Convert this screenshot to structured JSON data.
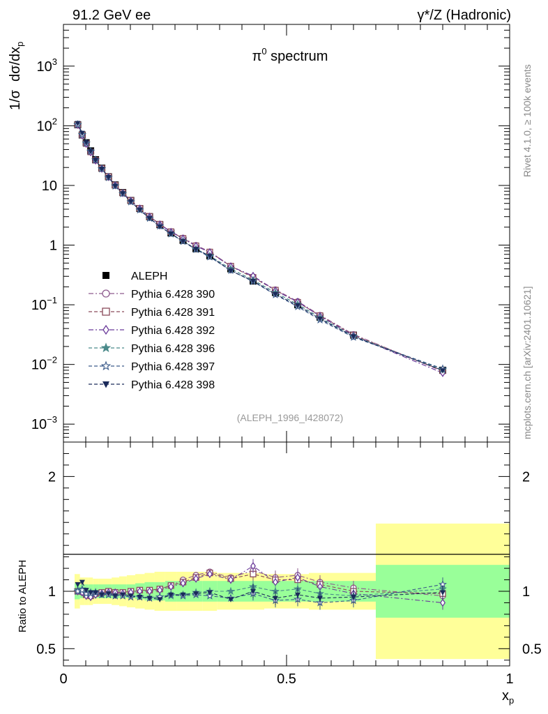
{
  "header": {
    "left": "91.2 GeV ee",
    "right_prefix": "γ*/Z",
    "right_suffix": "(Hadronic)"
  },
  "side_text": {
    "rivet": "Rivet 4.1.0, ≥ 100k events",
    "mcplots": "mcplots.cern.ch [arXiv:2401.10621]"
  },
  "colors": {
    "data": "#000000",
    "p390": "#8e5a8e",
    "p391": "#8a4a5a",
    "p392": "#6a3a9a",
    "p396": "#4a8a8a",
    "p397": "#3a5a8a",
    "p398": "#1a2a5a",
    "band_inner": "#99ff99",
    "band_outer": "#ffff99"
  },
  "chart_data": [
    {
      "type": "line",
      "title": "π0 spectrum",
      "title_base": "π",
      "title_sup": "0",
      "title_rest": " spectrum",
      "analysis_id": "(ALEPH_1996_I428072)",
      "ylabel": "1/σ  dσ/dxp",
      "ylabel_parts": {
        "a": "1/σ",
        "b": "dσ/dx",
        "sub": "p"
      },
      "yscale": "log",
      "ylim": [
        0.0005,
        5000
      ],
      "xlim": [
        0,
        1
      ],
      "y_ticks": [
        {
          "value": 0.001,
          "base": "10",
          "exp": "−3"
        },
        {
          "value": 0.01,
          "base": "10",
          "exp": "−2"
        },
        {
          "value": 0.1,
          "base": "10",
          "exp": "−1"
        },
        {
          "value": 1,
          "base": "1",
          "exp": ""
        },
        {
          "value": 10,
          "base": "10",
          "exp": ""
        },
        {
          "value": 100,
          "base": "10",
          "exp": "2"
        },
        {
          "value": 1000,
          "base": "10",
          "exp": "3"
        }
      ],
      "x": [
        0.032,
        0.042,
        0.051,
        0.061,
        0.072,
        0.086,
        0.101,
        0.116,
        0.133,
        0.151,
        0.171,
        0.193,
        0.216,
        0.241,
        0.268,
        0.297,
        0.328,
        0.375,
        0.425,
        0.475,
        0.525,
        0.575,
        0.65,
        0.85
      ],
      "data_values": [
        104.0,
        70.0,
        52.0,
        38.0,
        27.0,
        19.5,
        14.0,
        10.2,
        7.6,
        5.6,
        4.1,
        3.0,
        2.2,
        1.6,
        1.2,
        0.87,
        0.66,
        0.4,
        0.25,
        0.16,
        0.1,
        0.062,
        0.031,
        0.008
      ],
      "legend_position": "middle-left",
      "series": [
        {
          "name": "ALEPH",
          "marker": "square-filled",
          "line": "none",
          "color_key": "data"
        },
        {
          "name": "Pythia 6.428 390",
          "marker": "circle-open",
          "line": "dashdot",
          "color_key": "p390",
          "ratios": [
            1.0,
            0.99,
            0.97,
            0.96,
            0.98,
            0.99,
            1.0,
            0.99,
            0.99,
            1.0,
            1.01,
            1.01,
            1.02,
            1.05,
            1.1,
            1.14,
            1.17,
            1.12,
            1.18,
            1.12,
            1.14,
            1.08,
            1.03,
            0.96
          ]
        },
        {
          "name": "Pythia 6.428 391",
          "marker": "square-open",
          "line": "dashed",
          "color_key": "p391",
          "ratios": [
            1.0,
            1.0,
            0.97,
            0.96,
            0.98,
            0.99,
            1.0,
            0.99,
            0.99,
            1.0,
            1.01,
            1.01,
            1.02,
            1.05,
            1.08,
            1.12,
            1.16,
            1.11,
            1.15,
            1.1,
            1.1,
            1.06,
            1.0,
            0.98
          ]
        },
        {
          "name": "Pythia 6.428 392",
          "marker": "diamond-open",
          "line": "dashdot",
          "color_key": "p392",
          "ratios": [
            1.0,
            0.99,
            0.96,
            0.95,
            0.97,
            0.98,
            0.99,
            0.99,
            0.98,
            0.99,
            1.0,
            1.0,
            1.01,
            1.04,
            1.07,
            1.11,
            1.15,
            1.1,
            1.22,
            1.08,
            1.12,
            1.04,
            0.98,
            0.9
          ]
        },
        {
          "name": "Pythia 6.428 396",
          "marker": "star-filled",
          "line": "dashed",
          "color_key": "p396",
          "ratios": [
            1.01,
            1.02,
            0.99,
            0.99,
            0.99,
            0.97,
            0.97,
            0.96,
            0.96,
            0.95,
            0.95,
            0.94,
            0.95,
            0.96,
            0.97,
            0.99,
            1.0,
            1.0,
            1.04,
            1.0,
            1.02,
            0.98,
            0.96,
            1.02
          ]
        },
        {
          "name": "Pythia 6.428 397",
          "marker": "star-open",
          "line": "dashed",
          "color_key": "p397",
          "ratios": [
            1.0,
            1.01,
            0.98,
            0.98,
            0.99,
            0.97,
            0.97,
            0.96,
            0.96,
            0.95,
            0.95,
            0.94,
            0.95,
            0.97,
            0.96,
            0.97,
            0.96,
            0.94,
            0.98,
            0.92,
            0.93,
            0.9,
            0.92,
            1.06
          ]
        },
        {
          "name": "Pythia 6.428 398",
          "marker": "triangle-down-filled",
          "line": "dashed",
          "color_key": "p398",
          "ratios": [
            1.06,
            1.08,
            1.01,
            0.99,
            0.99,
            0.97,
            0.98,
            0.96,
            0.97,
            0.96,
            0.95,
            0.94,
            0.93,
            0.97,
            0.97,
            0.98,
            0.99,
            0.93,
            1.0,
            0.94,
            0.97,
            0.94,
            0.95,
            0.99
          ]
        }
      ]
    },
    {
      "type": "line",
      "ylabel": "Ratio to ALEPH",
      "xlabel": "xp",
      "xlabel_parts": {
        "base": "x",
        "sub": "p"
      },
      "xlim": [
        0,
        1
      ],
      "ylim": [
        0.35,
        2.3
      ],
      "reference_line": 1,
      "y_ticks": [
        {
          "value": 0.5,
          "label": "0.5"
        },
        {
          "value": 1,
          "label": "1"
        },
        {
          "value": 2,
          "label": "2"
        }
      ],
      "x_ticks": [
        {
          "value": 0,
          "label": "0"
        },
        {
          "value": 0.5,
          "label": "0.5"
        },
        {
          "value": 1,
          "label": "1"
        }
      ],
      "uncertainty_bands": {
        "bin_edges": [
          0.025,
          0.037,
          0.047,
          0.056,
          0.066,
          0.079,
          0.093,
          0.108,
          0.125,
          0.142,
          0.161,
          0.182,
          0.204,
          0.228,
          0.254,
          0.282,
          0.312,
          0.344,
          0.4,
          0.45,
          0.5,
          0.55,
          0.6,
          0.7,
          1.0
        ],
        "inner_halfwidth": [
          0.07,
          0.06,
          0.06,
          0.06,
          0.06,
          0.06,
          0.06,
          0.06,
          0.06,
          0.06,
          0.07,
          0.08,
          0.08,
          0.09,
          0.09,
          0.09,
          0.09,
          0.09,
          0.09,
          0.09,
          0.09,
          0.09,
          0.09,
          0.23
        ],
        "outer_halfwidth": [
          0.15,
          0.12,
          0.12,
          0.12,
          0.11,
          0.11,
          0.11,
          0.12,
          0.13,
          0.14,
          0.15,
          0.16,
          0.17,
          0.17,
          0.17,
          0.17,
          0.17,
          0.16,
          0.16,
          0.15,
          0.15,
          0.16,
          0.16,
          0.59
        ]
      }
    }
  ]
}
